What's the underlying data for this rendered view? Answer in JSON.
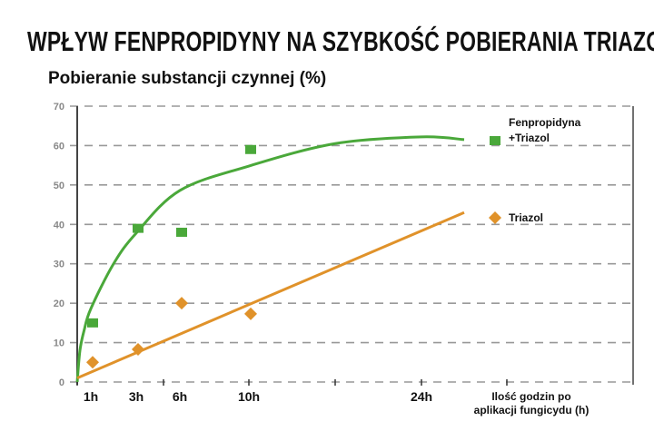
{
  "chart_data": {
    "type": "scatter",
    "title": "WPŁYW FENPROPIDYNY NA SZYBKOŚĆ POBIERANIA TRIAZOLI",
    "ylabel": "Pobieranie substancji czynnej (%)",
    "xlabel": [
      "Ilość godzin po",
      "aplikacji fungicydu (h)"
    ],
    "ylim": [
      0,
      70
    ],
    "yticks": [
      0,
      10,
      20,
      30,
      40,
      50,
      60,
      70
    ],
    "xticks": [
      {
        "h": 1,
        "label": "1h"
      },
      {
        "h": 3,
        "label": "3h"
      },
      {
        "h": 6,
        "label": "6h"
      },
      {
        "h": 10,
        "label": "10h"
      },
      {
        "h": 24,
        "label": "24h"
      }
    ],
    "grid": true,
    "legend_placement": "right",
    "series": [
      {
        "name": [
          "Fenpropidyna",
          "+Triazol"
        ],
        "color": "#4aa83a",
        "marker": "square",
        "points": [
          {
            "x": 1,
            "y": 15
          },
          {
            "x": 3,
            "y": 39
          },
          {
            "x": 6,
            "y": 38
          },
          {
            "x": 10,
            "y": 59
          }
        ],
        "trend": [
          {
            "x": 0,
            "y": 0
          },
          {
            "x": 0.2,
            "y": 8
          },
          {
            "x": 0.5,
            "y": 13
          },
          {
            "x": 1,
            "y": 18.6
          },
          {
            "x": 2,
            "y": 30
          },
          {
            "x": 3,
            "y": 37.8
          },
          {
            "x": 6,
            "y": 48.6
          },
          {
            "x": 10,
            "y": 54.8
          },
          {
            "x": 17,
            "y": 60.5
          },
          {
            "x": 24,
            "y": 62.2
          },
          {
            "x": 29,
            "y": 61.5
          }
        ]
      },
      {
        "name": [
          "Triazol"
        ],
        "color": "#e0922a",
        "marker": "diamond",
        "points": [
          {
            "x": 1,
            "y": 5
          },
          {
            "x": 3,
            "y": 8.3
          },
          {
            "x": 6,
            "y": 20
          },
          {
            "x": 10,
            "y": 17.3
          }
        ],
        "trend": [
          {
            "x": 0,
            "y": 1
          },
          {
            "x": 29,
            "y": 43
          }
        ]
      }
    ]
  }
}
